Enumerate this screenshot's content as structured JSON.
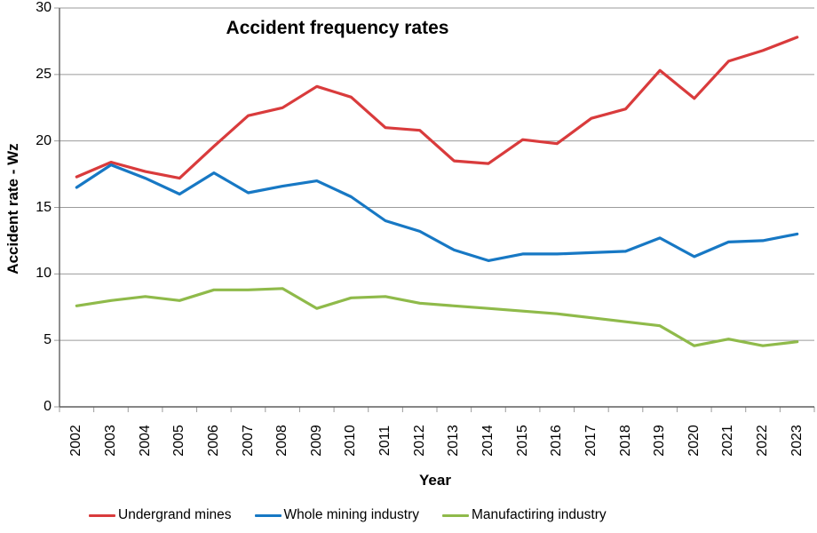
{
  "title": "Accident frequency rates",
  "axes": {
    "y_title": "Accident rate - Wz",
    "x_title": "Year"
  },
  "chart_data": {
    "type": "line",
    "title": "Accident frequency rates",
    "xlabel": "Year",
    "ylabel": "Accident rate - Wz",
    "ylim": [
      0,
      30
    ],
    "yticks": [
      0,
      5,
      10,
      15,
      20,
      25,
      30
    ],
    "grid": true,
    "legend_position": "bottom",
    "categories": [
      "2002",
      "2003",
      "2004",
      "2005",
      "2006",
      "2007",
      "2008",
      "2009",
      "2010",
      "2011",
      "2012",
      "2013",
      "2014",
      "2015",
      "2016",
      "2017",
      "2018",
      "2019",
      "2020",
      "2021",
      "2022",
      "2023"
    ],
    "series": [
      {
        "name": "Undergrand mines",
        "color": "#d93b3c",
        "values": [
          17.3,
          18.4,
          17.7,
          17.2,
          19.6,
          21.9,
          22.5,
          24.1,
          23.3,
          21.0,
          20.8,
          18.5,
          18.3,
          20.1,
          19.8,
          21.7,
          22.4,
          25.3,
          23.2,
          26.0,
          26.8,
          27.8
        ]
      },
      {
        "name": "Whole mining industry",
        "color": "#1778c4",
        "values": [
          16.5,
          18.2,
          17.2,
          16.0,
          17.6,
          16.1,
          16.6,
          17.0,
          15.8,
          14.0,
          13.2,
          11.8,
          11.0,
          11.5,
          11.5,
          11.6,
          11.7,
          12.7,
          11.3,
          12.4,
          12.5,
          13.0
        ]
      },
      {
        "name": "Manufactiring industry",
        "color": "#8fba4a",
        "values": [
          7.6,
          8.0,
          8.3,
          8.0,
          8.8,
          8.8,
          8.9,
          7.4,
          8.2,
          8.3,
          7.8,
          7.6,
          7.4,
          7.2,
          7.0,
          6.7,
          6.4,
          6.1,
          4.6,
          5.1,
          4.6,
          4.9
        ]
      }
    ]
  },
  "style_colors": {
    "gridline": "#9b9b9b",
    "axis": "#5f5f5f"
  }
}
